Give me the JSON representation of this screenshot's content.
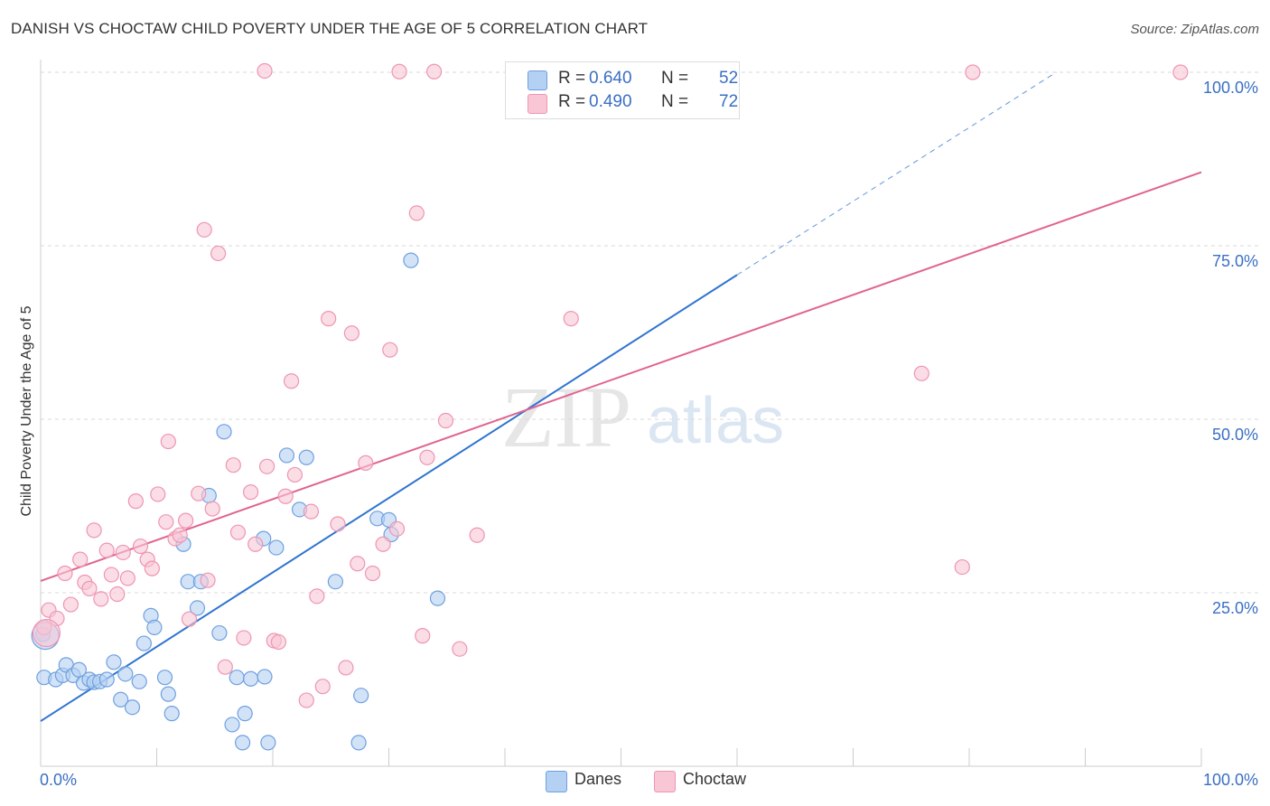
{
  "title": "DANISH VS CHOCTAW CHILD POVERTY UNDER THE AGE OF 5 CORRELATION CHART",
  "source": "Source: ZipAtlas.com",
  "watermark": {
    "zip": "ZIP",
    "atlas": "atlas"
  },
  "legend": {
    "r_label": "R =",
    "n_label": "N =",
    "rows": [
      {
        "r": "0.640",
        "n": "52",
        "color": "#a8c8f0"
      },
      {
        "r": "0.490",
        "n": "72",
        "color": "#f7b8cb"
      }
    ]
  },
  "bottom_legend": [
    "Danes",
    "Choctaw"
  ],
  "chart_data": {
    "type": "scatter",
    "title": "DANISH VS CHOCTAW CHILD POVERTY UNDER THE AGE OF 5 CORRELATION CHART",
    "xlabel": "",
    "ylabel": "Child Poverty Under the Age of 5",
    "xlim": [
      0,
      100
    ],
    "ylim": [
      0,
      100
    ],
    "x_tick_labels": [
      "0.0%",
      "100.0%"
    ],
    "y_tick_labels": [
      "25.0%",
      "50.0%",
      "75.0%",
      "100.0%"
    ],
    "y_ticks": [
      25,
      50,
      75,
      100
    ],
    "grid": "horizontal dashed",
    "legend_position": "top-center",
    "series": [
      {
        "name": "Danes",
        "color": "#6fa0e0",
        "fill": "#b4d0f2",
        "line_color": "#2f74d0",
        "trend": {
          "x0": 0,
          "y0": 6.5,
          "x1": 60,
          "y1": 70.8,
          "dashed_to_x": 87.5,
          "dashed_to_y": 100
        },
        "points": [
          [
            0.2,
            19
          ],
          [
            0.3,
            12.8
          ],
          [
            1.3,
            12.5
          ],
          [
            1.9,
            13.1
          ],
          [
            2.2,
            14.6
          ],
          [
            2.8,
            13.1
          ],
          [
            3.3,
            13.9
          ],
          [
            3.7,
            12
          ],
          [
            4.2,
            12.5
          ],
          [
            4.6,
            12.1
          ],
          [
            5.1,
            12.2
          ],
          [
            5.7,
            12.5
          ],
          [
            6.3,
            15
          ],
          [
            6.9,
            9.6
          ],
          [
            7.3,
            13.3
          ],
          [
            7.9,
            8.5
          ],
          [
            8.5,
            12.2
          ],
          [
            8.9,
            17.7
          ],
          [
            9.5,
            21.7
          ],
          [
            9.8,
            20
          ],
          [
            10.7,
            12.8
          ],
          [
            11,
            10.4
          ],
          [
            11.3,
            7.6
          ],
          [
            12.3,
            32
          ],
          [
            12.7,
            26.6
          ],
          [
            13.5,
            22.8
          ],
          [
            13.8,
            26.6
          ],
          [
            14.5,
            39
          ],
          [
            15.4,
            19.2
          ],
          [
            15.8,
            48.2
          ],
          [
            16.5,
            6
          ],
          [
            16.9,
            12.8
          ],
          [
            17.4,
            3.4
          ],
          [
            17.6,
            7.6
          ],
          [
            18.1,
            12.6
          ],
          [
            19.2,
            32.8
          ],
          [
            19.3,
            12.9
          ],
          [
            19.6,
            3.4
          ],
          [
            20.3,
            31.5
          ],
          [
            21.2,
            44.8
          ],
          [
            22.3,
            37
          ],
          [
            22.9,
            44.5
          ],
          [
            25.4,
            26.6
          ],
          [
            27.4,
            3.4
          ],
          [
            27.6,
            10.2
          ],
          [
            29,
            35.7
          ],
          [
            30,
            35.5
          ],
          [
            30.2,
            33.4
          ],
          [
            31.9,
            72.9
          ],
          [
            34.2,
            24.2
          ],
          [
            52.8,
            100.4
          ],
          [
            0.4,
            18.8
          ]
        ]
      },
      {
        "name": "Choctaw",
        "color": "#ef95b1",
        "fill": "#f9c6d5",
        "line_color": "#e0648f",
        "trend": {
          "x0": 0,
          "y0": 26.7,
          "x1": 100,
          "y1": 85.6
        },
        "points": [
          [
            0.3,
            20
          ],
          [
            0.7,
            22.5
          ],
          [
            1.4,
            21.3
          ],
          [
            2.1,
            27.8
          ],
          [
            2.6,
            23.3
          ],
          [
            3.4,
            29.8
          ],
          [
            3.8,
            26.5
          ],
          [
            4.2,
            25.6
          ],
          [
            4.6,
            34
          ],
          [
            5.2,
            24.1
          ],
          [
            5.7,
            31.1
          ],
          [
            6.1,
            27.6
          ],
          [
            6.6,
            24.8
          ],
          [
            7.1,
            30.8
          ],
          [
            7.5,
            27.1
          ],
          [
            8.2,
            38.2
          ],
          [
            8.6,
            31.7
          ],
          [
            9.2,
            29.8
          ],
          [
            9.6,
            28.5
          ],
          [
            10.1,
            39.2
          ],
          [
            10.8,
            35.2
          ],
          [
            11,
            46.8
          ],
          [
            11.6,
            32.8
          ],
          [
            12,
            33.3
          ],
          [
            12.5,
            35.4
          ],
          [
            12.8,
            21.2
          ],
          [
            13.6,
            39.3
          ],
          [
            14.1,
            77.3
          ],
          [
            14.4,
            26.8
          ],
          [
            14.8,
            37.1
          ],
          [
            15.3,
            73.9
          ],
          [
            15.9,
            14.3
          ],
          [
            16.6,
            43.4
          ],
          [
            17,
            33.7
          ],
          [
            17.5,
            18.5
          ],
          [
            18.1,
            39.5
          ],
          [
            18.5,
            32
          ],
          [
            19.3,
            100.2
          ],
          [
            19.5,
            43.2
          ],
          [
            20.1,
            18.1
          ],
          [
            20.5,
            17.9
          ],
          [
            21.1,
            38.9
          ],
          [
            21.6,
            55.5
          ],
          [
            21.9,
            42
          ],
          [
            22.9,
            9.5
          ],
          [
            23.3,
            36.7
          ],
          [
            23.8,
            24.5
          ],
          [
            24.3,
            11.5
          ],
          [
            24.8,
            64.5
          ],
          [
            25.6,
            34.9
          ],
          [
            26.3,
            14.2
          ],
          [
            26.8,
            62.4
          ],
          [
            27.3,
            29.2
          ],
          [
            28,
            43.7
          ],
          [
            28.6,
            27.8
          ],
          [
            29.5,
            32
          ],
          [
            30.1,
            60
          ],
          [
            30.7,
            34.2
          ],
          [
            30.9,
            100.1
          ],
          [
            32.4,
            79.7
          ],
          [
            32.9,
            18.8
          ],
          [
            33.3,
            44.5
          ],
          [
            33.9,
            100.1
          ],
          [
            34.9,
            49.8
          ],
          [
            36.1,
            16.9
          ],
          [
            37.6,
            33.3
          ],
          [
            45.7,
            64.5
          ],
          [
            75.9,
            56.6
          ],
          [
            79.4,
            28.7
          ],
          [
            80.3,
            100
          ],
          [
            98.2,
            100
          ],
          [
            0.5,
            19.2
          ]
        ]
      }
    ]
  }
}
